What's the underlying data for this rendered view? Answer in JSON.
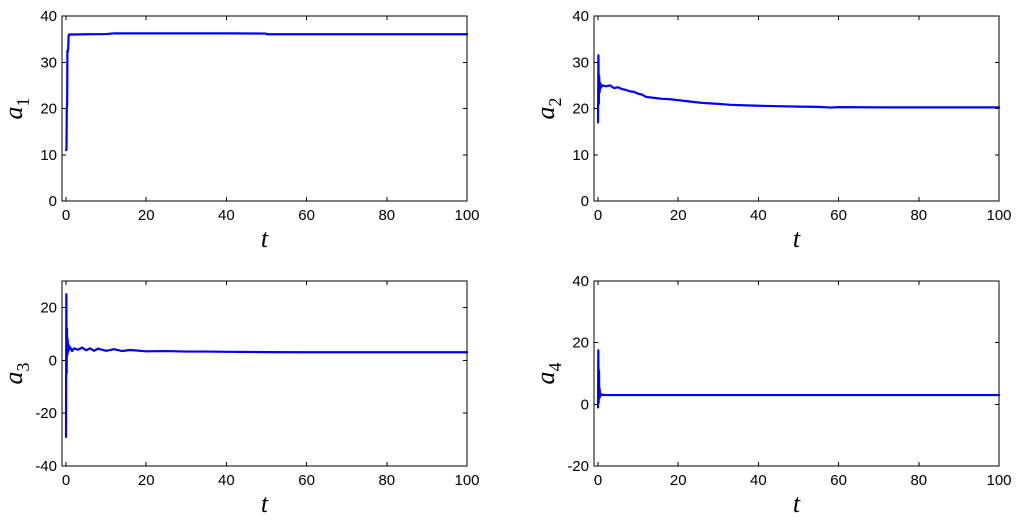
{
  "series_color": "#0000ff",
  "chart_data": [
    {
      "type": "line",
      "xlabel": "t",
      "ylabel": "a",
      "ylabel_sub": "1",
      "xlim": [
        -1,
        100
      ],
      "ylim": [
        0,
        40
      ],
      "xticks": [
        0,
        20,
        40,
        60,
        80,
        100
      ],
      "yticks": [
        0,
        10,
        20,
        30,
        40
      ],
      "grid": false,
      "series": [
        {
          "x": [
            0,
            0.12,
            0.2,
            0.28,
            0.35,
            0.45,
            0.55,
            0.65,
            0.75,
            0.9,
            2,
            5,
            10,
            12,
            20,
            30,
            40,
            49.9,
            50.1,
            60,
            70,
            80,
            90,
            100
          ],
          "values": [
            11,
            11.2,
            20,
            20.5,
            32.5,
            32.3,
            33,
            35.8,
            36,
            36,
            36,
            36.05,
            36.1,
            36.25,
            36.25,
            36.25,
            36.25,
            36.2,
            36.05,
            36.05,
            36.05,
            36.05,
            36.05,
            36.05
          ]
        }
      ]
    },
    {
      "type": "line",
      "xlabel": "t",
      "ylabel": "a",
      "ylabel_sub": "2",
      "xlim": [
        -1,
        100
      ],
      "ylim": [
        0,
        40
      ],
      "xticks": [
        0,
        20,
        40,
        60,
        80,
        100
      ],
      "yticks": [
        0,
        10,
        20,
        30,
        40
      ],
      "grid": false,
      "series": [
        {
          "x": [
            0,
            0.1,
            0.2,
            0.3,
            0.4,
            0.55,
            0.75,
            1,
            2,
            3,
            4,
            5,
            6,
            7,
            8,
            9,
            10,
            11,
            12,
            14,
            16,
            18,
            20,
            22,
            24,
            26,
            28,
            30,
            33,
            36,
            40,
            45,
            50,
            55,
            58,
            60,
            70,
            80,
            90,
            100
          ],
          "values": [
            17,
            31.5,
            21,
            27,
            23.5,
            25.5,
            24.5,
            25,
            24.8,
            25,
            24.4,
            24.6,
            24.2,
            24,
            23.7,
            23.6,
            23.2,
            23,
            22.5,
            22.3,
            22.1,
            22,
            21.8,
            21.6,
            21.4,
            21.2,
            21.1,
            21,
            20.8,
            20.7,
            20.6,
            20.5,
            20.4,
            20.35,
            20.2,
            20.3,
            20.25,
            20.25,
            20.25,
            20.25
          ]
        }
      ]
    },
    {
      "type": "line",
      "xlabel": "t",
      "ylabel": "a",
      "ylabel_sub": "3",
      "xlim": [
        -1,
        100
      ],
      "ylim": [
        -40,
        30
      ],
      "xticks": [
        0,
        20,
        40,
        60,
        80,
        100
      ],
      "yticks": [
        -40,
        -20,
        0,
        20
      ],
      "grid": false,
      "series": [
        {
          "x": [
            0,
            0.08,
            0.16,
            0.24,
            0.32,
            0.4,
            0.5,
            0.6,
            0.75,
            1,
            1.5,
            2,
            3,
            4,
            5,
            6,
            7,
            8,
            10,
            12,
            14,
            16,
            20,
            25,
            30,
            35,
            40,
            50,
            60,
            70,
            80,
            90,
            100
          ],
          "values": [
            -29,
            25,
            -5,
            12,
            2,
            8,
            3,
            6,
            4,
            5,
            3.5,
            4.5,
            4,
            4.8,
            3.8,
            4.5,
            3.6,
            4.4,
            3.6,
            4.2,
            3.5,
            3.9,
            3.4,
            3.5,
            3.3,
            3.3,
            3.2,
            3.1,
            3.05,
            3.05,
            3.05,
            3.05,
            3.05
          ]
        }
      ]
    },
    {
      "type": "line",
      "xlabel": "t",
      "ylabel": "a",
      "ylabel_sub": "4",
      "xlim": [
        -1,
        100
      ],
      "ylim": [
        -20,
        40
      ],
      "xticks": [
        0,
        20,
        40,
        60,
        80,
        100
      ],
      "yticks": [
        -20,
        0,
        20,
        40
      ],
      "grid": false,
      "series": [
        {
          "x": [
            0,
            0.08,
            0.16,
            0.25,
            0.33,
            0.42,
            0.5,
            0.6,
            0.75,
            1,
            2,
            5,
            10,
            20,
            40,
            60,
            80,
            100
          ],
          "values": [
            -1,
            17.5,
            0.5,
            11,
            2,
            5,
            2.5,
            3.5,
            3,
            3.1,
            3,
            3,
            3,
            3,
            3,
            3,
            3,
            3
          ]
        }
      ]
    }
  ]
}
